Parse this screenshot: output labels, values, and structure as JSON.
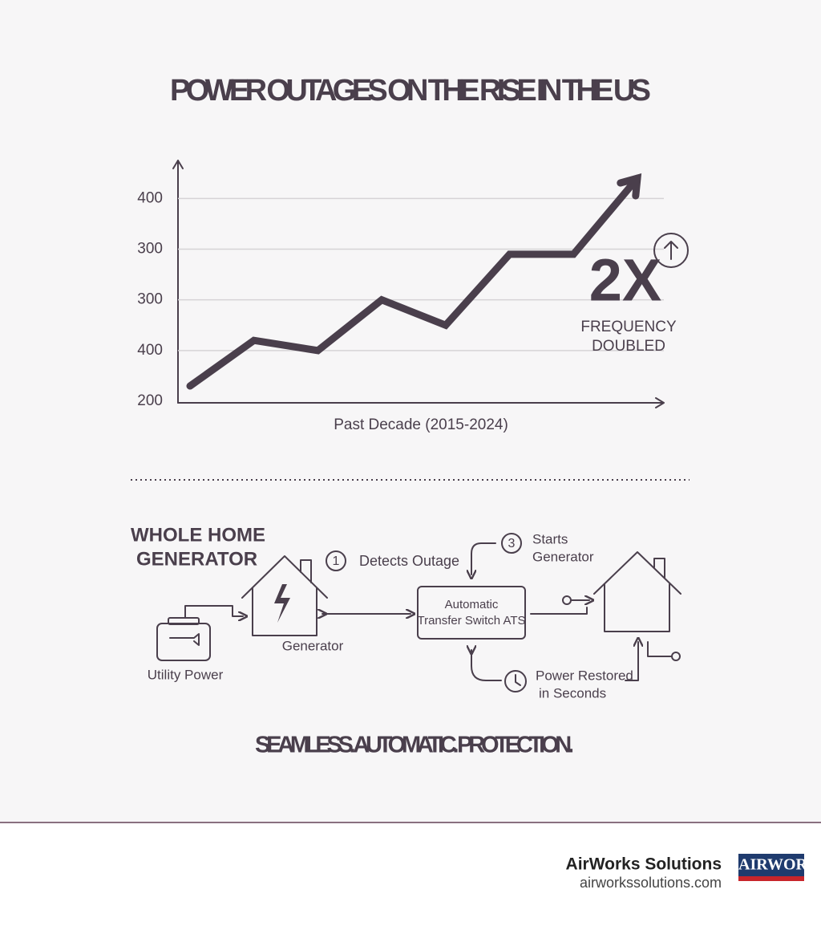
{
  "title": "POWER OUTAGES ON THE RISE IN THE US",
  "chart_data": {
    "type": "line",
    "categories": [
      null,
      null,
      null,
      null,
      null,
      null,
      null,
      null
    ],
    "values": [
      0.3,
      1.2,
      1.0,
      2.0,
      1.5,
      2.9,
      2.9,
      4.4
    ],
    "color": "#4a3f4c",
    "ylim": [
      0,
      4.75
    ],
    "yticks": [
      {
        "value": 0,
        "label": "200"
      },
      {
        "value": 1,
        "label": "400"
      },
      {
        "value": 2,
        "label": "300"
      },
      {
        "value": 3,
        "label": "300"
      },
      {
        "value": 4,
        "label": "400"
      }
    ],
    "grid": true,
    "xlabel": "Past Decade (2015-2024)",
    "annotation": {
      "big": "2X",
      "lines": [
        "FREQUENCY",
        "DOUBLED"
      ]
    }
  },
  "diagram": {
    "title_lines": [
      "WHOLE HOME",
      "GENERATOR"
    ],
    "step1": {
      "number": "1",
      "label": "Detects Outage"
    },
    "step3": {
      "number": "3",
      "lines": [
        "Starts",
        "Generator"
      ]
    },
    "generator": "Generator",
    "utility": "Utility Power",
    "ats_lines": [
      "Automatic",
      "Transfer Switch ATS"
    ],
    "restored_lines": [
      "Power Restored",
      "in Seconds"
    ]
  },
  "tagline": "SEAMLESS. AUTOMATIC. PROTECTION.",
  "footer": {
    "company": "AirWorks Solutions",
    "url": "airworkssolutions.com",
    "logo": "AIRWORKS"
  }
}
